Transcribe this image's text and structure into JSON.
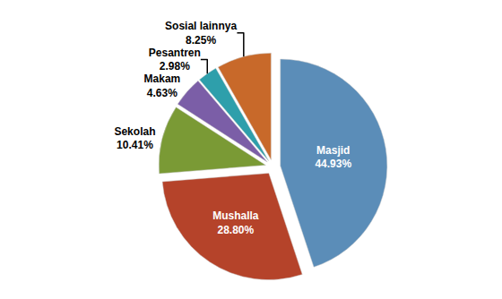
{
  "chart_data": {
    "type": "pie",
    "categories": [
      "Masjid",
      "Mushalla",
      "Sekolah",
      "Makam",
      "Pesantren",
      "Sosial lainnya"
    ],
    "values": [
      44.93,
      28.8,
      10.41,
      4.63,
      2.98,
      8.25
    ],
    "value_labels": [
      "44.93%",
      "28.80%",
      "10.41%",
      "4.63%",
      "2.98%",
      "8.25%"
    ],
    "colors": [
      "#5B8DB8",
      "#B5432A",
      "#7A9A35",
      "#7B5EA7",
      "#2E9FAB",
      "#C8692A"
    ],
    "data_labels": true
  }
}
